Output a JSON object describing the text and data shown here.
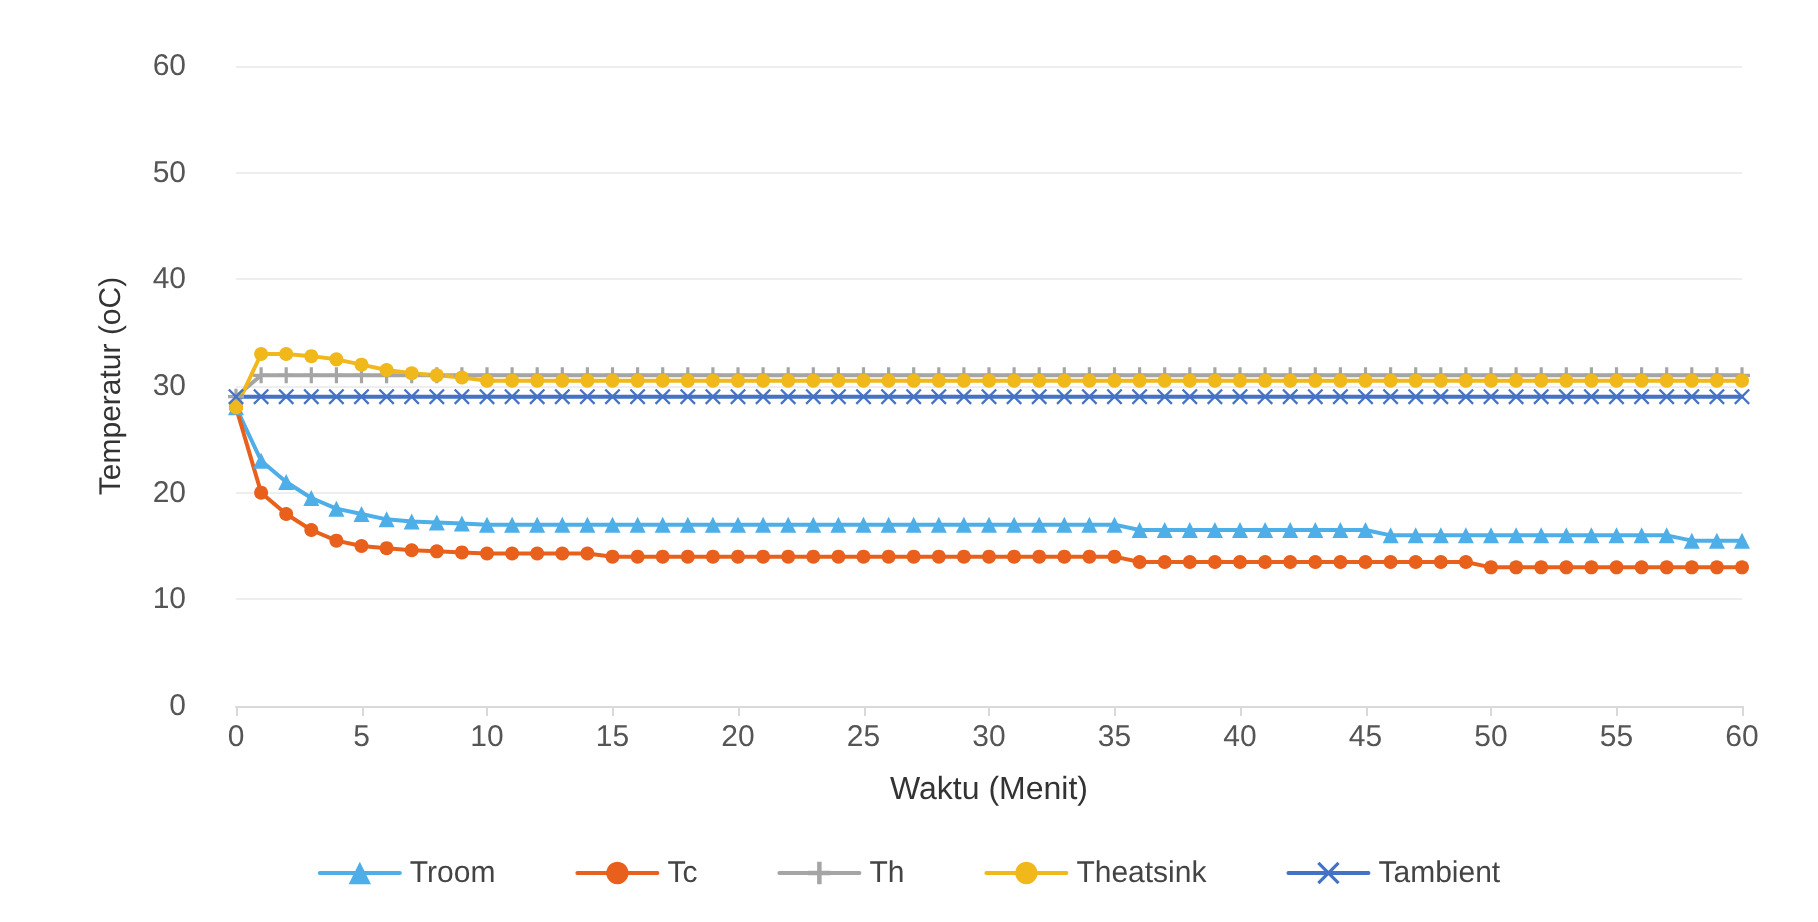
{
  "chart_data": {
    "type": "line",
    "xlabel": "Waktu (Menit)",
    "ylabel": "Temperatur (oC)",
    "x": [
      0,
      1,
      2,
      3,
      4,
      5,
      6,
      7,
      8,
      9,
      10,
      11,
      12,
      13,
      14,
      15,
      16,
      17,
      18,
      19,
      20,
      21,
      22,
      23,
      24,
      25,
      26,
      27,
      28,
      29,
      30,
      31,
      32,
      33,
      34,
      35,
      36,
      37,
      38,
      39,
      40,
      41,
      42,
      43,
      44,
      45,
      46,
      47,
      48,
      49,
      50,
      51,
      52,
      53,
      54,
      55,
      56,
      57,
      58,
      59,
      60
    ],
    "xlim": [
      0,
      60
    ],
    "xticks": [
      0,
      5,
      10,
      15,
      20,
      25,
      30,
      35,
      40,
      45,
      50,
      55,
      60
    ],
    "ylim": [
      0,
      60
    ],
    "yticks": [
      0,
      10,
      20,
      30,
      40,
      50,
      60
    ],
    "grid": "y",
    "legend": "bottom",
    "series": [
      {
        "name": "Troom",
        "color": "#4eaee8",
        "marker": "triangle",
        "values": [
          28,
          23,
          21,
          19.5,
          18.5,
          18,
          17.5,
          17.3,
          17.2,
          17.1,
          17,
          17,
          17,
          17,
          17,
          17,
          17,
          17,
          17,
          17,
          17,
          17,
          17,
          17,
          17,
          17,
          17,
          17,
          17,
          17,
          17,
          17,
          17,
          17,
          17,
          17,
          16.5,
          16.5,
          16.5,
          16.5,
          16.5,
          16.5,
          16.5,
          16.5,
          16.5,
          16.5,
          16,
          16,
          16,
          16,
          16,
          16,
          16,
          16,
          16,
          16,
          16,
          16,
          15.5,
          15.5,
          15.5
        ]
      },
      {
        "name": "Tc",
        "color": "#e8601c",
        "marker": "circle",
        "values": [
          28,
          20,
          18,
          16.5,
          15.5,
          15,
          14.8,
          14.6,
          14.5,
          14.4,
          14.3,
          14.3,
          14.3,
          14.3,
          14.3,
          14,
          14,
          14,
          14,
          14,
          14,
          14,
          14,
          14,
          14,
          14,
          14,
          14,
          14,
          14,
          14,
          14,
          14,
          14,
          14,
          14,
          13.5,
          13.5,
          13.5,
          13.5,
          13.5,
          13.5,
          13.5,
          13.5,
          13.5,
          13.5,
          13.5,
          13.5,
          13.5,
          13.5,
          13,
          13,
          13,
          13,
          13,
          13,
          13,
          13,
          13,
          13,
          13
        ]
      },
      {
        "name": "Th",
        "color": "#a5a5a5",
        "marker": "cross",
        "values": [
          29,
          31,
          31,
          31,
          31,
          31,
          31,
          31,
          31,
          31,
          31,
          31,
          31,
          31,
          31,
          31,
          31,
          31,
          31,
          31,
          31,
          31,
          31,
          31,
          31,
          31,
          31,
          31,
          31,
          31,
          31,
          31,
          31,
          31,
          31,
          31,
          31,
          31,
          31,
          31,
          31,
          31,
          31,
          31,
          31,
          31,
          31,
          31,
          31,
          31,
          31,
          31,
          31,
          31,
          31,
          31,
          31,
          31,
          31,
          31,
          31
        ]
      },
      {
        "name": "Theatsink",
        "color": "#f0b81a",
        "marker": "circle",
        "values": [
          28,
          33,
          33,
          32.8,
          32.5,
          32,
          31.5,
          31.2,
          31,
          30.8,
          30.5,
          30.5,
          30.5,
          30.5,
          30.5,
          30.5,
          30.5,
          30.5,
          30.5,
          30.5,
          30.5,
          30.5,
          30.5,
          30.5,
          30.5,
          30.5,
          30.5,
          30.5,
          30.5,
          30.5,
          30.5,
          30.5,
          30.5,
          30.5,
          30.5,
          30.5,
          30.5,
          30.5,
          30.5,
          30.5,
          30.5,
          30.5,
          30.5,
          30.5,
          30.5,
          30.5,
          30.5,
          30.5,
          30.5,
          30.5,
          30.5,
          30.5,
          30.5,
          30.5,
          30.5,
          30.5,
          30.5,
          30.5,
          30.5,
          30.5,
          30.5
        ]
      },
      {
        "name": "Tambient",
        "color": "#4472c4",
        "marker": "x",
        "values": [
          29,
          29,
          29,
          29,
          29,
          29,
          29,
          29,
          29,
          29,
          29,
          29,
          29,
          29,
          29,
          29,
          29,
          29,
          29,
          29,
          29,
          29,
          29,
          29,
          29,
          29,
          29,
          29,
          29,
          29,
          29,
          29,
          29,
          29,
          29,
          29,
          29,
          29,
          29,
          29,
          29,
          29,
          29,
          29,
          29,
          29,
          29,
          29,
          29,
          29,
          29,
          29,
          29,
          29,
          29,
          29,
          29,
          29,
          29,
          29,
          29
        ]
      }
    ]
  }
}
